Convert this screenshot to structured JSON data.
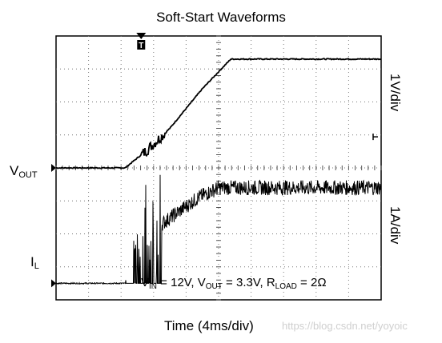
{
  "chart_data": {
    "type": "line",
    "title": "Soft-Start Waveforms",
    "xlabel": "Time (4ms/div)",
    "time_per_div_ms": 4,
    "x_divisions": 10,
    "y_divisions": 8,
    "grid": true,
    "channels": [
      {
        "name": "VOUT",
        "label_main": "V",
        "label_sub": "OUT",
        "scale_label": "1V/div",
        "color": "#000000",
        "baseline_div": 4.0,
        "points_ms": [
          [
            0,
            0
          ],
          [
            8.5,
            0
          ],
          [
            11,
            0.5
          ],
          [
            14,
            1.2
          ],
          [
            18,
            2.4
          ],
          [
            21.5,
            3.3
          ],
          [
            40,
            3.3
          ]
        ],
        "units": "V"
      },
      {
        "name": "IL",
        "label_main": "I",
        "label_sub": "L",
        "scale_label": "1A/div",
        "color": "#000000",
        "baseline_div": 0.5,
        "points_ms": [
          [
            0,
            0
          ],
          [
            8.5,
            0
          ],
          [
            9.5,
            0.6
          ],
          [
            11,
            1.1
          ],
          [
            13,
            1.8
          ],
          [
            17.5,
            2.6
          ],
          [
            20,
            2.9
          ],
          [
            40,
            2.9
          ]
        ],
        "units": "A"
      }
    ],
    "trigger_marker": "T",
    "annotation": {
      "vin_main": "V",
      "vin_sub": "IN",
      "vin_val": " = 12V, ",
      "vout_main": "V",
      "vout_sub": "OUT",
      "vout_val": " = 3.3V, ",
      "rload_main": "R",
      "rload_sub": "LOAD",
      "rload_val": " = 2Ω"
    }
  },
  "watermark": "https://blog.csdn.net/yoyoic"
}
